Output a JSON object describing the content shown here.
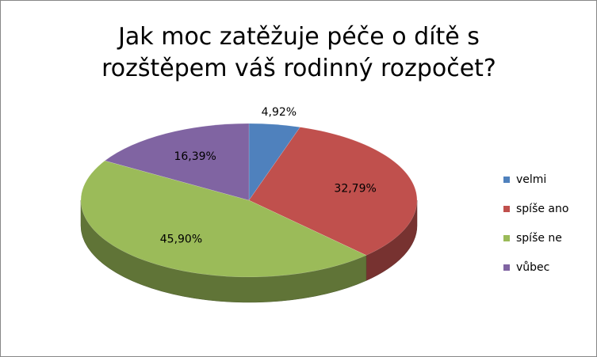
{
  "chart_data": {
    "type": "pie",
    "title": "Jak moc zatěžuje péče o dítě s rozštěpem váš rodinný rozpočet?",
    "categories": [
      "velmi",
      "spíše ano",
      "spíše ne",
      "vůbec"
    ],
    "values": [
      4.92,
      32.79,
      45.9,
      16.39
    ],
    "value_labels": [
      "4,92%",
      "32,79%",
      "45,90%",
      "16,39%"
    ],
    "colors": [
      "#4f81bd",
      "#c0504d",
      "#9bbb59",
      "#8064a2"
    ],
    "legend": "right"
  }
}
